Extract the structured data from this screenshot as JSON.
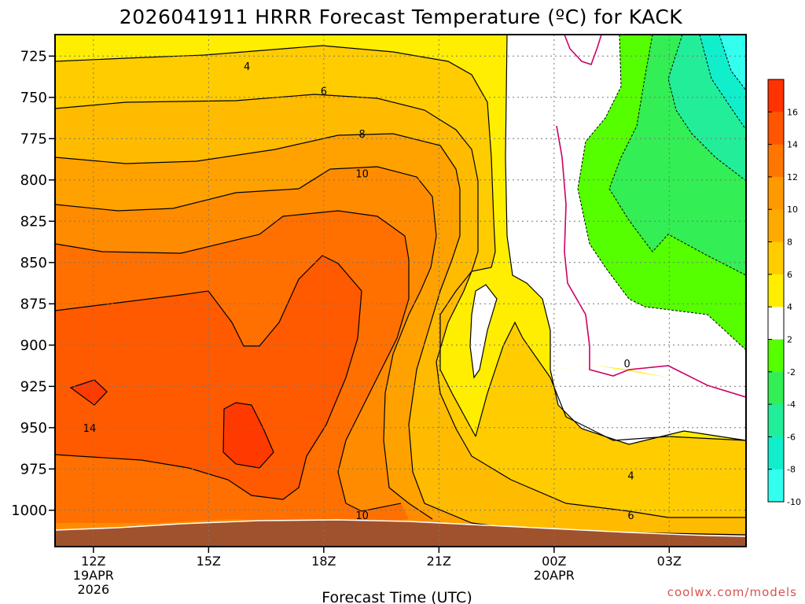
{
  "chart_data": {
    "type": "contour",
    "title": "2026041911 HRRR Forecast Temperature (ºC) for KACK",
    "xlabel": "Forecast Time (UTC)",
    "ylabel": "",
    "credit": "coolwx.com/models",
    "y_axis": {
      "ticks": [
        725,
        750,
        775,
        800,
        825,
        850,
        875,
        900,
        925,
        950,
        975,
        1000
      ],
      "labels": [
        "725",
        "750",
        "775",
        "800",
        "825",
        "850",
        "875",
        "900",
        "925",
        "950",
        "975",
        "1000"
      ],
      "range": [
        712,
        1022
      ],
      "inverted": true
    },
    "x_axis": {
      "ticks": [
        12,
        15,
        18,
        21,
        24,
        27
      ],
      "labels": [
        {
          "line1": "12Z",
          "line2": "19APR",
          "line3": "2026"
        },
        {
          "line1": "15Z",
          "line2": "",
          "line3": ""
        },
        {
          "line1": "18Z",
          "line2": "",
          "line3": ""
        },
        {
          "line1": "21Z",
          "line2": "",
          "line3": ""
        },
        {
          "line1": "00Z",
          "line2": "20APR",
          "line3": ""
        },
        {
          "line1": "03Z",
          "line2": "",
          "line3": ""
        }
      ],
      "range": [
        11,
        29
      ],
      "grid": true
    },
    "colorbar": {
      "labels": [
        "16",
        "14",
        "12",
        "10",
        "8",
        "6",
        "4",
        "2",
        "-2",
        "-4",
        "-6",
        "-8",
        "-10"
      ],
      "colors": [
        "#ff3300",
        "#ff5500",
        "#ff7700",
        "#ff9900",
        "#ffaa00",
        "#ffcc00",
        "#ffee00",
        "#ffffff",
        "#55ff00",
        "#33ee55",
        "#22ee99",
        "#11eecc",
        "#33ffee"
      ]
    },
    "contour_labels": [
      {
        "text": "4",
        "x": 16.0,
        "y": 731
      },
      {
        "text": "6",
        "x": 18.0,
        "y": 746
      },
      {
        "text": "8",
        "x": 19.0,
        "y": 772
      },
      {
        "text": "10",
        "x": 19.0,
        "y": 796
      },
      {
        "text": "14",
        "x": 11.9,
        "y": 950
      },
      {
        "text": "10",
        "x": 19.0,
        "y": 1003
      },
      {
        "text": "0",
        "x": 25.9,
        "y": 911
      },
      {
        "text": "4",
        "x": 26.0,
        "y": 979
      },
      {
        "text": "6",
        "x": 26.0,
        "y": 1003
      }
    ],
    "grid": true,
    "legend_position": "right"
  }
}
